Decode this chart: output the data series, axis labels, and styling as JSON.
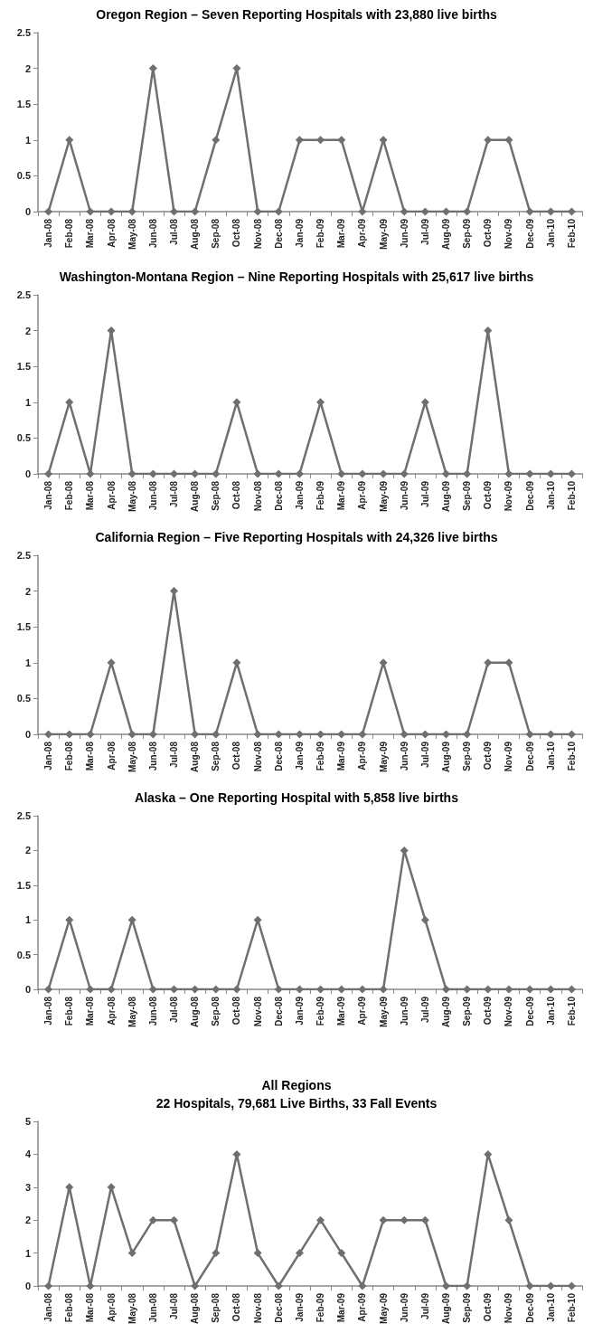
{
  "chart_data": [
    {
      "type": "line",
      "title": "Oregon Region – Seven Reporting Hospitals with 23,880 live births",
      "categories": [
        "Jan-08",
        "Feb-08",
        "Mar-08",
        "Apr-08",
        "May-08",
        "Jun-08",
        "Jul-08",
        "Aug-08",
        "Sep-08",
        "Oct-08",
        "Nov-08",
        "Dec-08",
        "Jan-09",
        "Feb-09",
        "Mar-09",
        "Apr-09",
        "May-09",
        "Jun-09",
        "Jul-09",
        "Aug-09",
        "Sep-09",
        "Oct-09",
        "Nov-09",
        "Dec-09",
        "Jan-10",
        "Feb-10"
      ],
      "series": [
        {
          "color": "#6f6f6f",
          "values": [
            0,
            1,
            0,
            0,
            0,
            2,
            0,
            0,
            1,
            2,
            0,
            0,
            1,
            1,
            1,
            0,
            1,
            0,
            0,
            0,
            0,
            1,
            1,
            0,
            0,
            0
          ]
        }
      ],
      "ylim": [
        0,
        2.5
      ],
      "yticks": [
        0,
        0.5,
        1,
        1.5,
        2,
        2.5
      ],
      "grid": false,
      "marker": "diamond",
      "line_style": "solid"
    },
    {
      "type": "line",
      "title": "Washington-Montana Region – Nine Reporting Hospitals with 25,617 live births",
      "categories": [
        "Jan-08",
        "Feb-08",
        "Mar-08",
        "Apr-08",
        "May-08",
        "Jun-08",
        "Jul-08",
        "Aug-08",
        "Sep-08",
        "Oct-08",
        "Nov-08",
        "Dec-08",
        "Jan-09",
        "Feb-09",
        "Mar-09",
        "Apr-09",
        "May-09",
        "Jun-09",
        "Jul-09",
        "Aug-09",
        "Sep-09",
        "Oct-09",
        "Nov-09",
        "Dec-09",
        "Jan-10",
        "Feb-10"
      ],
      "series": [
        {
          "color": "#6f6f6f",
          "values": [
            0,
            1,
            0,
            2,
            0,
            0,
            0,
            0,
            0,
            1,
            0,
            0,
            0,
            1,
            0,
            0,
            0,
            0,
            1,
            0,
            0,
            2,
            0,
            0,
            0,
            0
          ]
        }
      ],
      "ylim": [
        0,
        2.5
      ],
      "yticks": [
        0,
        0.5,
        1,
        1.5,
        2,
        2.5
      ],
      "grid": false,
      "marker": "diamond",
      "line_style": "solid"
    },
    {
      "type": "line",
      "title": "California Region – Five Reporting Hospitals with 24,326 live births",
      "categories": [
        "Jan-08",
        "Feb-08",
        "Mar-08",
        "Apr-08",
        "May-08",
        "Jun-08",
        "Jul-08",
        "Aug-08",
        "Sep-08",
        "Oct-08",
        "Nov-08",
        "Dec-08",
        "Jan-09",
        "Feb-09",
        "Mar-09",
        "Apr-09",
        "May-09",
        "Jun-09",
        "Jul-09",
        "Aug-09",
        "Sep-09",
        "Oct-09",
        "Nov-09",
        "Dec-09",
        "Jan-10",
        "Feb-10"
      ],
      "series": [
        {
          "color": "#6f6f6f",
          "values": [
            0,
            0,
            0,
            1,
            0,
            0,
            2,
            0,
            0,
            1,
            0,
            0,
            0,
            0,
            0,
            0,
            1,
            0,
            0,
            0,
            0,
            1,
            1,
            0,
            0,
            0
          ]
        }
      ],
      "ylim": [
        0,
        2.5
      ],
      "yticks": [
        0,
        0.5,
        1,
        1.5,
        2,
        2.5
      ],
      "grid": false,
      "marker": "diamond",
      "line_style": "solid"
    },
    {
      "type": "line",
      "title": "Alaska – One Reporting Hospital with 5,858 live births",
      "categories": [
        "Jan-08",
        "Feb-08",
        "Mar-08",
        "Apr-08",
        "May-08",
        "Jun-08",
        "Jul-08",
        "Aug-08",
        "Sep-08",
        "Oct-08",
        "Nov-08",
        "Dec-08",
        "Jan-09",
        "Feb-09",
        "Mar-09",
        "Apr-09",
        "May-09",
        "Jun-09",
        "Jul-09",
        "Aug-09",
        "Sep-09",
        "Oct-09",
        "Nov-09",
        "Dec-09",
        "Jan-10",
        "Feb-10"
      ],
      "series": [
        {
          "color": "#6f6f6f",
          "values": [
            0,
            1,
            0,
            0,
            1,
            0,
            0,
            0,
            0,
            0,
            1,
            0,
            0,
            0,
            0,
            0,
            0,
            2,
            1,
            0,
            0,
            0,
            0,
            0,
            0,
            0
          ]
        }
      ],
      "ylim": [
        0,
        2.5
      ],
      "yticks": [
        0,
        0.5,
        1,
        1.5,
        2,
        2.5
      ],
      "grid": false,
      "marker": "diamond",
      "line_style": "solid"
    },
    {
      "type": "line",
      "title": "All Regions",
      "subtitle": "22 Hospitals, 79,681 Live Births, 33 Fall Events",
      "categories": [
        "Jan-08",
        "Feb-08",
        "Mar-08",
        "Apr-08",
        "May-08",
        "Jun-08",
        "Jul-08",
        "Aug-08",
        "Sep-08",
        "Oct-08",
        "Nov-08",
        "Dec-08",
        "Jan-09",
        "Feb-09",
        "Mar-09",
        "Apr-09",
        "May-09",
        "Jun-09",
        "Jul-09",
        "Aug-09",
        "Sep-09",
        "Oct-09",
        "Nov-09",
        "Dec-09",
        "Jan-10",
        "Feb-10"
      ],
      "series": [
        {
          "color": "#6f6f6f",
          "values": [
            0,
            3,
            0,
            3,
            1,
            2,
            2,
            0,
            1,
            4,
            1,
            0,
            1,
            2,
            1,
            0,
            2,
            2,
            2,
            0,
            0,
            4,
            2,
            0,
            0,
            0
          ]
        }
      ],
      "ylim": [
        0,
        5
      ],
      "yticks": [
        0,
        1,
        2,
        3,
        4,
        5
      ],
      "grid": false,
      "marker": "diamond",
      "line_style": "solid"
    }
  ]
}
